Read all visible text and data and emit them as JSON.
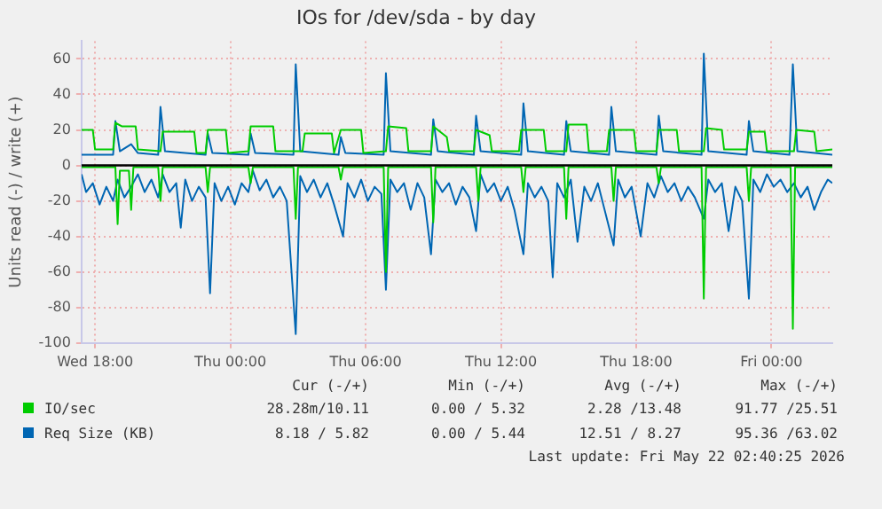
{
  "chart_data": {
    "type": "line",
    "title": "IOs for /dev/sda - by day",
    "ylabel": "Units read (-) / write (+)",
    "xlim": [
      "2026-05-20T17:24",
      "2026-05-22T02:42"
    ],
    "xticks": [
      {
        "value": "2026-05-20T18:00",
        "label": "Wed 18:00"
      },
      {
        "value": "2026-05-21T00:00",
        "label": "Thu 00:00"
      },
      {
        "value": "2026-05-21T06:00",
        "label": "Thu 06:00"
      },
      {
        "value": "2026-05-21T12:00",
        "label": "Thu 12:00"
      },
      {
        "value": "2026-05-21T18:00",
        "label": "Thu 18:00"
      },
      {
        "value": "2026-05-22T00:00",
        "label": "Fri 00:00"
      }
    ],
    "ylim": [
      -100,
      70
    ],
    "yticks": [
      -100,
      -80,
      -60,
      -40,
      -20,
      0,
      20,
      40,
      60
    ],
    "grid": true,
    "legend": "bottom",
    "marker": "none",
    "line_style": "solid",
    "ref_lines": [
      {
        "axis": "y",
        "value": 0,
        "color": "#000000"
      }
    ],
    "series": [
      {
        "name": "IO/sec",
        "color": "#00cc00",
        "x": [
          "2026-05-20T17:24",
          "2026-05-20T17:54",
          "2026-05-20T18:00",
          "2026-05-20T18:48",
          "2026-05-20T18:54",
          "2026-05-20T19:12",
          "2026-05-20T19:48",
          "2026-05-20T19:54",
          "2026-05-20T20:54",
          "2026-05-20T21:00",
          "2026-05-20T22:24",
          "2026-05-20T22:30",
          "2026-05-20T22:54",
          "2026-05-20T23:00",
          "2026-05-20T23:48",
          "2026-05-20T23:54",
          "2026-05-21T00:48",
          "2026-05-21T00:54",
          "2026-05-21T01:54",
          "2026-05-21T02:00",
          "2026-05-21T03:12",
          "2026-05-21T03:18",
          "2026-05-21T04:30",
          "2026-05-21T04:36",
          "2026-05-21T04:54",
          "2026-05-21T05:48",
          "2026-05-21T05:54",
          "2026-05-21T06:54",
          "2026-05-21T07:00",
          "2026-05-21T07:48",
          "2026-05-21T07:54",
          "2026-05-21T08:54",
          "2026-05-21T09:00",
          "2026-05-21T09:36",
          "2026-05-21T09:42",
          "2026-05-21T10:48",
          "2026-05-21T10:54",
          "2026-05-21T11:30",
          "2026-05-21T11:36",
          "2026-05-21T12:48",
          "2026-05-21T12:54",
          "2026-05-21T13:54",
          "2026-05-21T14:00",
          "2026-05-21T14:54",
          "2026-05-21T15:00",
          "2026-05-21T15:48",
          "2026-05-21T15:54",
          "2026-05-21T16:42",
          "2026-05-21T16:48",
          "2026-05-21T17:54",
          "2026-05-21T18:00",
          "2026-05-21T18:54",
          "2026-05-21T19:00",
          "2026-05-21T19:48",
          "2026-05-21T19:54",
          "2026-05-21T21:00",
          "2026-05-21T21:06",
          "2026-05-21T21:48",
          "2026-05-21T21:54",
          "2026-05-21T22:54",
          "2026-05-21T23:00",
          "2026-05-21T23:42",
          "2026-05-21T23:48",
          "2026-05-22T01:00",
          "2026-05-22T01:06",
          "2026-05-22T01:54",
          "2026-05-22T02:00",
          "2026-05-22T02:42"
        ],
        "values": [
          20,
          20,
          9,
          9,
          24,
          22,
          22,
          9,
          8,
          19,
          19,
          7,
          7,
          20,
          20,
          7,
          8,
          22,
          22,
          8,
          8,
          18,
          18,
          7,
          20,
          20,
          7,
          8,
          22,
          21,
          8,
          8,
          22,
          16,
          8,
          8,
          20,
          17,
          8,
          8,
          20,
          20,
          8,
          8,
          23,
          23,
          8,
          8,
          20,
          20,
          8,
          8,
          20,
          20,
          8,
          8,
          21,
          20,
          9,
          9,
          19,
          19,
          8,
          8,
          20,
          19,
          8,
          9
        ]
      },
      {
        "name": "Req Size (KB)",
        "color": "#0066b3",
        "x": [
          "2026-05-20T17:24",
          "2026-05-20T18:48",
          "2026-05-20T18:54",
          "2026-05-20T19:06",
          "2026-05-20T19:36",
          "2026-05-20T19:54",
          "2026-05-20T20:48",
          "2026-05-20T20:54",
          "2026-05-20T21:06",
          "2026-05-20T22:54",
          "2026-05-20T23:00",
          "2026-05-20T23:12",
          "2026-05-21T00:48",
          "2026-05-21T00:54",
          "2026-05-21T01:06",
          "2026-05-21T02:48",
          "2026-05-21T02:54",
          "2026-05-21T03:06",
          "2026-05-21T04:48",
          "2026-05-21T04:54",
          "2026-05-21T05:06",
          "2026-05-21T06:48",
          "2026-05-21T06:54",
          "2026-05-21T07:06",
          "2026-05-21T08:54",
          "2026-05-21T09:00",
          "2026-05-21T09:12",
          "2026-05-21T10:48",
          "2026-05-21T10:54",
          "2026-05-21T11:06",
          "2026-05-21T12:54",
          "2026-05-21T13:00",
          "2026-05-21T13:12",
          "2026-05-21T14:48",
          "2026-05-21T14:54",
          "2026-05-21T15:06",
          "2026-05-21T16:48",
          "2026-05-21T16:54",
          "2026-05-21T17:06",
          "2026-05-21T18:54",
          "2026-05-21T19:00",
          "2026-05-21T19:12",
          "2026-05-21T20:54",
          "2026-05-21T21:00",
          "2026-05-21T21:12",
          "2026-05-21T22:54",
          "2026-05-21T23:00",
          "2026-05-21T23:12",
          "2026-05-22T00:48",
          "2026-05-22T00:57",
          "2026-05-22T01:09",
          "2026-05-22T02:42"
        ],
        "values": [
          6,
          6,
          25,
          8,
          12,
          7,
          6,
          33,
          8,
          6,
          18,
          7,
          6,
          18,
          7,
          6,
          57,
          8,
          6,
          16,
          7,
          6,
          52,
          8,
          6,
          26,
          8,
          6,
          28,
          8,
          6,
          35,
          8,
          6,
          25,
          8,
          6,
          33,
          8,
          6,
          28,
          8,
          6,
          63,
          8,
          6,
          25,
          8,
          6,
          57,
          8,
          6
        ]
      },
      {
        "color": "#00cc00",
        "x": [
          "2026-05-20T17:24",
          "2026-05-20T18:54",
          "2026-05-20T19:00",
          "2026-05-20T19:06",
          "2026-05-20T19:30",
          "2026-05-20T19:36",
          "2026-05-20T19:42",
          "2026-05-20T20:48",
          "2026-05-20T20:54",
          "2026-05-20T21:00",
          "2026-05-20T22:54",
          "2026-05-20T23:00",
          "2026-05-20T23:06",
          "2026-05-21T00:48",
          "2026-05-21T00:54",
          "2026-05-21T01:00",
          "2026-05-21T02:48",
          "2026-05-21T02:54",
          "2026-05-21T03:00",
          "2026-05-21T04:48",
          "2026-05-21T04:54",
          "2026-05-21T05:00",
          "2026-05-21T06:48",
          "2026-05-21T06:54",
          "2026-05-21T07:00",
          "2026-05-21T08:54",
          "2026-05-21T09:00",
          "2026-05-21T09:06",
          "2026-05-21T10:54",
          "2026-05-21T11:00",
          "2026-05-21T11:06",
          "2026-05-21T12:54",
          "2026-05-21T13:00",
          "2026-05-21T13:06",
          "2026-05-21T14:48",
          "2026-05-21T14:54",
          "2026-05-21T15:00",
          "2026-05-21T16:54",
          "2026-05-21T17:00",
          "2026-05-21T17:06",
          "2026-05-21T18:54",
          "2026-05-21T19:00",
          "2026-05-21T19:06",
          "2026-05-21T20:54",
          "2026-05-21T21:00",
          "2026-05-21T21:06",
          "2026-05-21T22:54",
          "2026-05-21T23:00",
          "2026-05-21T23:06",
          "2026-05-22T00:51",
          "2026-05-22T00:57",
          "2026-05-22T01:03",
          "2026-05-22T02:42"
        ],
        "values": [
          -1,
          -1,
          -33,
          -3,
          -3,
          -25,
          -1,
          -1,
          -20,
          -1,
          -1,
          -15,
          -1,
          -1,
          -10,
          -1,
          -1,
          -30,
          -1,
          -1,
          -8,
          -1,
          -1,
          -60,
          -1,
          -1,
          -32,
          -1,
          -1,
          -20,
          -1,
          -1,
          -15,
          -1,
          -1,
          -30,
          -1,
          -1,
          -20,
          -1,
          -1,
          -10,
          -1,
          -1,
          -75,
          -1,
          -1,
          -20,
          -1,
          -1,
          -92,
          -1,
          -1
        ]
      },
      {
        "color": "#0066b3",
        "x": [
          "2026-05-20T17:24",
          "2026-05-20T17:36",
          "2026-05-20T17:54",
          "2026-05-20T18:12",
          "2026-05-20T18:30",
          "2026-05-20T18:48",
          "2026-05-20T19:00",
          "2026-05-20T19:18",
          "2026-05-20T19:36",
          "2026-05-20T19:54",
          "2026-05-20T20:12",
          "2026-05-20T20:30",
          "2026-05-20T20:48",
          "2026-05-20T21:00",
          "2026-05-20T21:18",
          "2026-05-20T21:36",
          "2026-05-20T21:48",
          "2026-05-20T22:00",
          "2026-05-20T22:18",
          "2026-05-20T22:36",
          "2026-05-20T22:54",
          "2026-05-20T23:06",
          "2026-05-20T23:18",
          "2026-05-20T23:36",
          "2026-05-20T23:54",
          "2026-05-21T00:12",
          "2026-05-21T00:30",
          "2026-05-21T00:48",
          "2026-05-21T01:00",
          "2026-05-21T01:18",
          "2026-05-21T01:36",
          "2026-05-21T01:54",
          "2026-05-21T02:12",
          "2026-05-21T02:30",
          "2026-05-21T02:54",
          "2026-05-21T03:06",
          "2026-05-21T03:24",
          "2026-05-21T03:42",
          "2026-05-21T04:00",
          "2026-05-21T04:18",
          "2026-05-21T04:36",
          "2026-05-21T05:00",
          "2026-05-21T05:12",
          "2026-05-21T05:30",
          "2026-05-21T05:48",
          "2026-05-21T06:06",
          "2026-05-21T06:24",
          "2026-05-21T06:42",
          "2026-05-21T06:54",
          "2026-05-21T07:06",
          "2026-05-21T07:24",
          "2026-05-21T07:42",
          "2026-05-21T08:00",
          "2026-05-21T08:18",
          "2026-05-21T08:36",
          "2026-05-21T08:54",
          "2026-05-21T09:06",
          "2026-05-21T09:24",
          "2026-05-21T09:42",
          "2026-05-21T10:00",
          "2026-05-21T10:18",
          "2026-05-21T10:36",
          "2026-05-21T10:54",
          "2026-05-21T11:06",
          "2026-05-21T11:24",
          "2026-05-21T11:42",
          "2026-05-21T12:00",
          "2026-05-21T12:18",
          "2026-05-21T12:36",
          "2026-05-21T13:00",
          "2026-05-21T13:12",
          "2026-05-21T13:30",
          "2026-05-21T13:48",
          "2026-05-21T14:06",
          "2026-05-21T14:18",
          "2026-05-21T14:30",
          "2026-05-21T14:48",
          "2026-05-21T15:06",
          "2026-05-21T15:24",
          "2026-05-21T15:42",
          "2026-05-21T16:00",
          "2026-05-21T16:18",
          "2026-05-21T16:36",
          "2026-05-21T17:00",
          "2026-05-21T17:12",
          "2026-05-21T17:30",
          "2026-05-21T17:48",
          "2026-05-21T18:12",
          "2026-05-21T18:30",
          "2026-05-21T18:48",
          "2026-05-21T19:06",
          "2026-05-21T19:24",
          "2026-05-21T19:42",
          "2026-05-21T20:00",
          "2026-05-21T20:18",
          "2026-05-21T20:36",
          "2026-05-21T21:00",
          "2026-05-21T21:12",
          "2026-05-21T21:30",
          "2026-05-21T21:48",
          "2026-05-21T22:06",
          "2026-05-21T22:24",
          "2026-05-21T22:42",
          "2026-05-21T23:00",
          "2026-05-21T23:12",
          "2026-05-21T23:30",
          "2026-05-21T23:48",
          "2026-05-22T00:06",
          "2026-05-22T00:24",
          "2026-05-22T00:42",
          "2026-05-22T01:00",
          "2026-05-22T01:18",
          "2026-05-22T01:36",
          "2026-05-22T01:54",
          "2026-05-22T02:12",
          "2026-05-22T02:30",
          "2026-05-22T02:42"
        ],
        "values": [
          -5,
          -15,
          -10,
          -22,
          -12,
          -20,
          -8,
          -18,
          -12,
          -5,
          -15,
          -8,
          -18,
          -5,
          -15,
          -10,
          -35,
          -8,
          -20,
          -12,
          -18,
          -72,
          -10,
          -20,
          -12,
          -22,
          -10,
          -15,
          -3,
          -14,
          -8,
          -18,
          -12,
          -20,
          -95,
          -6,
          -15,
          -8,
          -18,
          -10,
          -22,
          -40,
          -10,
          -18,
          -8,
          -20,
          -12,
          -16,
          -70,
          -8,
          -15,
          -10,
          -25,
          -10,
          -18,
          -50,
          -8,
          -15,
          -10,
          -22,
          -12,
          -18,
          -37,
          -5,
          -15,
          -10,
          -20,
          -12,
          -25,
          -50,
          -10,
          -18,
          -12,
          -20,
          -63,
          -10,
          -18,
          -8,
          -43,
          -12,
          -20,
          -10,
          -25,
          -45,
          -8,
          -18,
          -12,
          -40,
          -10,
          -18,
          -6,
          -15,
          -10,
          -20,
          -12,
          -18,
          -30,
          -8,
          -15,
          -10,
          -37,
          -12,
          -20,
          -75,
          -8,
          -15,
          -5,
          -12,
          -8,
          -15,
          -10,
          -18,
          -12,
          -25,
          -15,
          -8,
          -10
        ]
      }
    ],
    "annotations": [
      "Cur (-/+)",
      "Min (-/+)",
      "Avg (-/+)",
      "Max (-/+)",
      "28.28m/10.11",
      "0.00 / 5.32",
      "2.28 /13.48",
      "91.77 /25.51",
      "8.18 / 5.82",
      "0.00 / 5.44",
      "12.51 / 8.27",
      "95.36 /63.02",
      "Last update: Fri May 22 02:40:25 2026"
    ]
  }
}
